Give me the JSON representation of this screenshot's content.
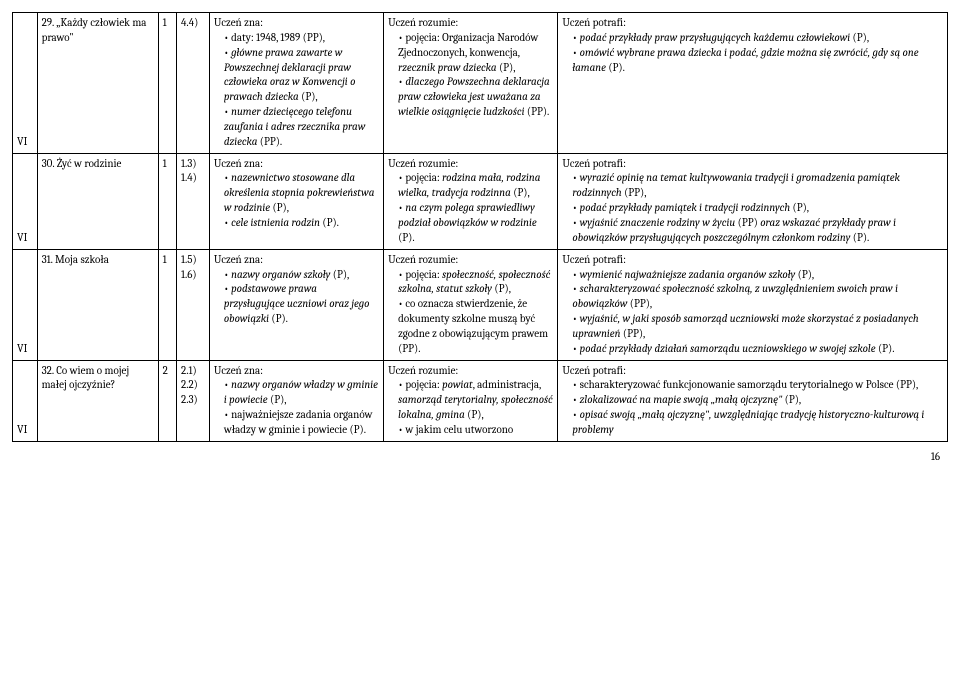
{
  "page_number": "16",
  "rows": [
    {
      "vi": "VI",
      "topic": "29. „Każdy człowiek ma prawo\"",
      "col1": "1",
      "col2": "4.4)",
      "zna_head": "Uczeń zna:",
      "zna_items": [
        "daty: 1948, 1989 (PP),",
        "<em>główne prawa zawarte w Powszechnej deklaracji praw człowieka oraz w Konwencji o prawach dziecka</em> (P),",
        "<em>numer dziecięcego telefonu zaufania i adres rzecznika praw dziecka</em> (PP)."
      ],
      "roz_head": "Uczeń rozumie:",
      "roz_items": [
        "pojęcia: Organizacja Narodów Zjednoczonych, konwencja, <em>rzecznik praw dziecka</em> (P),",
        "<em>dlaczego Powszechna deklaracja praw człowieka jest uważana za wielkie osiągnięcie ludzkości</em> (PP)."
      ],
      "pot_head": "Uczeń potrafi:",
      "pot_items": [
        "<em>podać przykłady praw przysługujących każdemu człowiekowi</em> (P),",
        "<em>omówić wybrane prawa dziecka i podać, gdzie można się zwrócić, gdy są one łamane</em> (P)."
      ]
    },
    {
      "vi": "VI",
      "topic": "30. Żyć w rodzinie",
      "col1": "1",
      "col2": "1.3)\n1.4)",
      "zna_head": "Uczeń zna:",
      "zna_items": [
        "<em>nazewnictwo stosowane dla określenia stopnia pokrewieństwa w rodzinie</em> (P),",
        "<em>cele istnienia rodzin</em> (P)."
      ],
      "roz_head": "Uczeń rozumie:",
      "roz_items": [
        "pojęcia: <em>rodzina mała, rodzina wielka, tradycja rodzinna</em> (P),",
        "<em>na czym polega sprawiedliwy podział obowiązków w rodzinie</em> (P)."
      ],
      "pot_head": "Uczeń potrafi:",
      "pot_items": [
        "<em>wyrazić opinię na temat kultywowania tradycji i gromadzenia pamiątek rodzinnych</em> (PP),",
        "<em>podać przykłady pamiątek i tradycji rodzinnych</em> (P),",
        "<em>wyjaśnić znaczenie rodziny w życiu</em> (PP) <em>oraz wskazać przykłady praw i obowiązków przysługujących poszczególnym członkom rodziny</em> (P)."
      ]
    },
    {
      "vi": "VI",
      "topic": "31. Moja szkoła",
      "col1": "1",
      "col2": "1.5)\n1.6)",
      "zna_head": "Uczeń zna:",
      "zna_items": [
        "<em>nazwy organów szkoły</em> (P),",
        "<em>podstawowe prawa przysługujące uczniowi oraz jego obowiązki</em> (P)."
      ],
      "roz_head": "Uczeń rozumie:",
      "roz_items": [
        "pojęcia: <em>społeczność, społeczność szkolna, statut szkoły</em> (P),",
        "co oznacza stwierdzenie, że dokumenty szkolne muszą być zgodne z obowiązującym prawem (PP)."
      ],
      "pot_head": "Uczeń potrafi:",
      "pot_items": [
        "<em>wymienić najważniejsze zadania organów szkoły</em> (P),",
        "<em>scharakteryzować społeczność szkolną, z uwzględnieniem swoich praw i obowiązków</em> (PP),",
        "<em>wyjaśnić, w jaki sposób samorząd uczniowski może skorzystać z posiadanych uprawnień</em> (PP),",
        "<em>podać przykłady działań samorządu uczniowskiego w swojej szkole</em> (P)."
      ]
    },
    {
      "vi": "VI",
      "topic": "32. Co wiem o mojej małej ojczyźnie?",
      "col1": "2",
      "col2": "2.1)\n2.2)\n2.3)",
      "zna_head": "Uczeń zna:",
      "zna_items": [
        "<em>nazwy organów władzy w gminie i powiecie</em> (P),",
        "najważniejsze zadania organów władzy w gminie i powiecie (P)."
      ],
      "roz_head": "Uczeń rozumie:",
      "roz_items": [
        "pojęcia: <em>powiat</em>, administracja, <em>samorząd terytorialny, społeczność lokalna, gmina</em> (P),",
        "w jakim celu utworzono"
      ],
      "pot_head": "Uczeń potrafi:",
      "pot_items": [
        "scharakteryzować funkcjonowanie samorządu terytorialnego w Polsce (PP),",
        "<em>zlokalizować na mapie swoją „małą ojczyznę\"</em> (P),",
        "<em>opisać swoją „małą ojczyznę\", uwzględniając tradycję historyczno-kulturową i problemy</em>"
      ]
    }
  ]
}
